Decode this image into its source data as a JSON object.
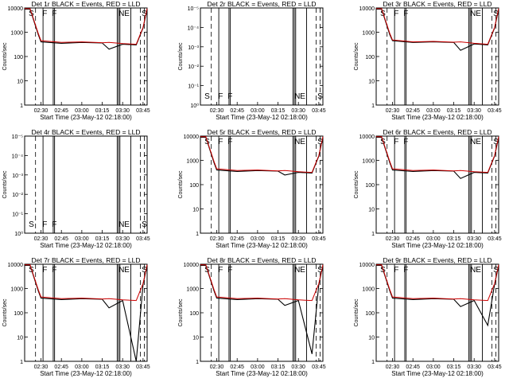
{
  "figure": {
    "background": "#ffffff",
    "line_color": "#000000",
    "lld_color": "#cc0000"
  },
  "common": {
    "xlabel": "Start Time (23-May-12 02:18:00)",
    "ylabel": "Counts/sec",
    "xticks": [
      "02:30",
      "02:45",
      "03:00",
      "03:15",
      "03:30",
      "03:45"
    ],
    "log_yticks": [
      "1",
      "10",
      "100",
      "1000",
      "10000"
    ],
    "tiny_yticks": [
      "10⁰",
      "10⁻¹",
      "10⁻²",
      "10⁻³",
      "10⁻⁴",
      "10⁻⁵"
    ]
  },
  "chart_data": [
    {
      "type": "line",
      "title": "Det 1r BLACK = Events, RED = LLD",
      "markers": [
        "S",
        "F",
        "F",
        "NE",
        "S"
      ],
      "x": [
        "02:18",
        "02:22",
        "02:28",
        "02:30",
        "02:45",
        "03:00",
        "03:15",
        "03:20",
        "03:30",
        "03:40",
        "03:45",
        "03:48"
      ],
      "series": [
        {
          "name": "Events",
          "values": [
            9000,
            9000,
            800,
            400,
            350,
            380,
            360,
            200,
            320,
            300,
            1500,
            9000
          ]
        },
        {
          "name": "LLD",
          "values": [
            9500,
            9500,
            900,
            450,
            380,
            400,
            370,
            380,
            340,
            320,
            1600,
            9500
          ]
        }
      ],
      "ylim": [
        1,
        10000
      ]
    },
    {
      "type": "line",
      "title": "Det 2r BLACK = Events, RED = LLD",
      "markers": [
        "S",
        "F",
        "F",
        "NE",
        "S"
      ],
      "x": [
        "02:18",
        "03:48"
      ],
      "series": [
        {
          "name": "Events",
          "values": [
            0,
            0
          ]
        }
      ],
      "ylim": [
        1,
        1e-06
      ]
    },
    {
      "type": "line",
      "title": "Det 3r BLACK = Events, RED = LLD",
      "markers": [
        "S",
        "F",
        "F",
        "NE",
        "S"
      ],
      "x": [
        "02:18",
        "02:22",
        "02:28",
        "02:30",
        "02:45",
        "03:00",
        "03:15",
        "03:20",
        "03:30",
        "03:40",
        "03:45",
        "03:48"
      ],
      "series": [
        {
          "name": "Events",
          "values": [
            9000,
            9000,
            800,
            450,
            380,
            400,
            380,
            180,
            330,
            300,
            1500,
            9000
          ]
        },
        {
          "name": "LLD",
          "values": [
            9500,
            9500,
            900,
            480,
            400,
            420,
            390,
            400,
            350,
            320,
            1600,
            9500
          ]
        }
      ],
      "ylim": [
        1,
        10000
      ]
    },
    {
      "type": "line",
      "title": "Det 4r BLACK = Events, RED = LLD",
      "markers": [
        "S",
        "F",
        "F",
        "NE",
        "S"
      ],
      "x": [
        "02:18",
        "03:48"
      ],
      "series": [
        {
          "name": "Events",
          "values": [
            0,
            0
          ]
        }
      ],
      "ylim": [
        1,
        1e-06
      ]
    },
    {
      "type": "line",
      "title": "Det 5r BLACK = Events, RED = LLD",
      "markers": [
        "S",
        "F",
        "F",
        "NE",
        "S"
      ],
      "x": [
        "02:18",
        "02:22",
        "02:28",
        "02:30",
        "02:45",
        "03:00",
        "03:15",
        "03:20",
        "03:30",
        "03:40",
        "03:45",
        "03:48"
      ],
      "series": [
        {
          "name": "Events",
          "values": [
            9000,
            9000,
            800,
            400,
            350,
            380,
            360,
            250,
            320,
            300,
            1500,
            9000
          ]
        },
        {
          "name": "LLD",
          "values": [
            9500,
            9500,
            900,
            450,
            380,
            400,
            370,
            380,
            340,
            320,
            1600,
            9500
          ]
        }
      ],
      "ylim": [
        1,
        10000
      ]
    },
    {
      "type": "line",
      "title": "Det 6r BLACK = Events, RED = LLD",
      "markers": [
        "S",
        "F",
        "F",
        "NE",
        "S"
      ],
      "x": [
        "02:18",
        "02:22",
        "02:28",
        "02:30",
        "02:45",
        "03:00",
        "03:15",
        "03:20",
        "03:30",
        "03:40",
        "03:45",
        "03:48"
      ],
      "series": [
        {
          "name": "Events",
          "values": [
            9000,
            9000,
            800,
            400,
            350,
            380,
            360,
            180,
            320,
            300,
            1500,
            9000
          ]
        },
        {
          "name": "LLD",
          "values": [
            9500,
            9500,
            900,
            450,
            380,
            400,
            370,
            380,
            340,
            320,
            1600,
            9500
          ]
        }
      ],
      "ylim": [
        1,
        10000
      ]
    },
    {
      "type": "line",
      "title": "Det 7r BLACK = Events, RED = LLD",
      "markers": [
        "S",
        "F",
        "F",
        "NE",
        "S"
      ],
      "x": [
        "02:18",
        "02:22",
        "02:28",
        "02:30",
        "02:45",
        "03:00",
        "03:15",
        "03:20",
        "03:30",
        "03:40",
        "03:45",
        "03:48"
      ],
      "series": [
        {
          "name": "Events",
          "values": [
            9000,
            9000,
            800,
            400,
            350,
            380,
            360,
            160,
            320,
            1,
            1500,
            9000
          ]
        },
        {
          "name": "LLD",
          "values": [
            9500,
            9500,
            900,
            450,
            380,
            400,
            370,
            380,
            340,
            320,
            1600,
            9500
          ]
        }
      ],
      "ylim": [
        1,
        10000
      ]
    },
    {
      "type": "line",
      "title": "Det 8r BLACK = Events, RED = LLD",
      "markers": [
        "S",
        "F",
        "F",
        "NE",
        "S"
      ],
      "x": [
        "02:18",
        "02:22",
        "02:28",
        "02:30",
        "02:45",
        "03:00",
        "03:15",
        "03:20",
        "03:30",
        "03:40",
        "03:45",
        "03:48"
      ],
      "series": [
        {
          "name": "Events",
          "values": [
            9000,
            9000,
            800,
            400,
            350,
            380,
            360,
            200,
            320,
            2,
            1500,
            9000
          ]
        },
        {
          "name": "LLD",
          "values": [
            9500,
            9500,
            900,
            450,
            380,
            400,
            370,
            380,
            340,
            320,
            1600,
            9500
          ]
        }
      ],
      "ylim": [
        1,
        10000
      ]
    },
    {
      "type": "line",
      "title": "Det 9r BLACK = Events, RED = LLD",
      "markers": [
        "S",
        "F",
        "F",
        "NE",
        "S"
      ],
      "x": [
        "02:18",
        "02:22",
        "02:28",
        "02:30",
        "02:45",
        "03:00",
        "03:15",
        "03:20",
        "03:30",
        "03:40",
        "03:45",
        "03:48"
      ],
      "series": [
        {
          "name": "Events",
          "values": [
            9000,
            9000,
            800,
            400,
            350,
            380,
            360,
            180,
            320,
            30,
            1500,
            9000
          ]
        },
        {
          "name": "LLD",
          "values": [
            9500,
            9500,
            900,
            450,
            380,
            400,
            370,
            380,
            340,
            320,
            1600,
            9500
          ]
        }
      ],
      "ylim": [
        1,
        10000
      ]
    }
  ]
}
